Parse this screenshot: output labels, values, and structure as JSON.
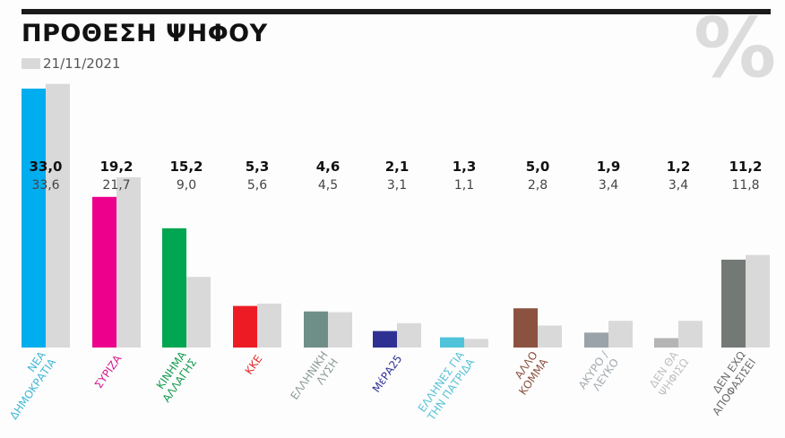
{
  "title": "ΠΡΟΘΕΣΗ ΨΗΦΟΥ",
  "watermark": "%",
  "legend": {
    "previous_date": "21/11/2021",
    "previous_color": "#d9d9d9"
  },
  "chart_data": {
    "type": "bar",
    "title": "ΠΡΟΘΕΣΗ ΨΗΦΟΥ",
    "ylim": [
      0,
      34
    ],
    "grid": false,
    "categories": [
      [
        "ΝΕΑ",
        "ΔΗΜΟΚΡΑΤΙΑ"
      ],
      [
        "ΣΥΡΙΖΑ"
      ],
      [
        "ΚΙΝΗΜΑ",
        "ΑΛΛΑΓΗΣ"
      ],
      [
        "ΚΚΕ"
      ],
      [
        "ΕΛΛΗΝΙΚΗ",
        "ΛΥΣΗ"
      ],
      [
        "ΜέΡΑ25"
      ],
      [
        "ΕΛΛΗΝΕΣ ΓΙΑ",
        "ΤΗΝ ΠΑΤΡΙΔΑ"
      ],
      [
        "ΑΛΛΟ",
        "ΚΟΜΜΑ"
      ],
      [
        "ΑΚΥΡΟ /",
        "ΛΕΥΚΟ"
      ],
      [
        "ΔΕΝ ΘΑ",
        "ΨΗΦΙΣΩ"
      ],
      [
        "ΔΕΝ ΕΧΩ",
        "ΑΠΟΦΑΣΙΣΕΙ"
      ]
    ],
    "colors": [
      "#00aeef",
      "#ec008c",
      "#00a651",
      "#ed1c24",
      "#6e8f88",
      "#2e3192",
      "#4fc3d9",
      "#8b5240",
      "#9aa3aa",
      "#b4b4b4",
      "#737a76"
    ],
    "label_colors": [
      "#3fb6d6",
      "#d6188e",
      "#129a4f",
      "#e02b2b",
      "#8a9a98",
      "#2e3192",
      "#56c1d6",
      "#8b5240",
      "#a3abb1",
      "#c0c0c0",
      "#6d6d6d"
    ],
    "series": [
      {
        "name": "current",
        "values": [
          33.0,
          19.2,
          15.2,
          5.3,
          4.6,
          2.1,
          1.3,
          5.0,
          1.9,
          1.2,
          11.2
        ],
        "labels": [
          "33,0",
          "19,2",
          "15,2",
          "5,3",
          "4,6",
          "2,1",
          "1,3",
          "5,0",
          "1,9",
          "1,2",
          "11,2"
        ]
      },
      {
        "name": "previous",
        "date": "21/11/2021",
        "values": [
          33.6,
          21.7,
          9.0,
          5.6,
          4.5,
          3.1,
          1.1,
          2.8,
          3.4,
          3.4,
          11.8
        ],
        "labels": [
          "33,6",
          "21,7",
          "9,0",
          "5,6",
          "4,5",
          "3,1",
          "1,1",
          "2,8",
          "3,4",
          "3,4",
          "11,8"
        ]
      }
    ]
  }
}
